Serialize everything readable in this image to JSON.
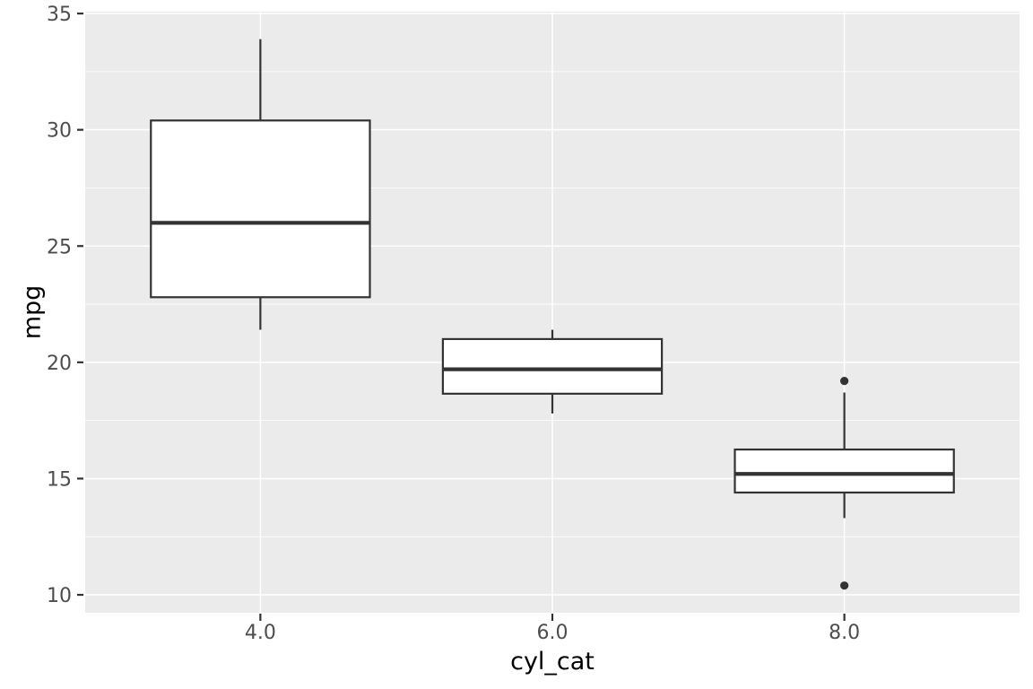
{
  "figure": {
    "background": "#FFFFFF"
  },
  "chart_data": {
    "type": "boxplot",
    "title": "",
    "xlabel": "cyl_cat",
    "ylabel": "mpg",
    "categories": [
      "4.0",
      "6.0",
      "8.0"
    ],
    "boxes": [
      {
        "category": "4.0",
        "lower_whisker": 21.4,
        "q1": 22.8,
        "median": 26.0,
        "q3": 30.4,
        "upper_whisker": 33.9,
        "outliers": []
      },
      {
        "category": "6.0",
        "lower_whisker": 17.8,
        "q1": 18.65,
        "median": 19.7,
        "q3": 21.0,
        "upper_whisker": 21.4,
        "outliers": []
      },
      {
        "category": "8.0",
        "lower_whisker": 13.3,
        "q1": 14.4,
        "median": 15.2,
        "q3": 16.25,
        "upper_whisker": 18.7,
        "outliers": [
          19.2,
          10.4
        ]
      }
    ],
    "ylim": [
      9.23,
      35.08
    ],
    "yticks": [
      10,
      15,
      20,
      25,
      30,
      35
    ],
    "yticks_minor": [
      12.5,
      17.5,
      22.5,
      27.5,
      32.5
    ],
    "grid": "horizontal major+minor, vertical major at category centers",
    "legend": "none",
    "colors": {
      "panel_background": "#EBEBEB",
      "grid_major": "#FFFFFF",
      "grid_minor": "#FFFFFF",
      "box_fill": "#FFFFFF",
      "box_stroke": "#333333",
      "median_stroke": "#333333",
      "whisker_stroke": "#333333",
      "outlier_fill": "#333333",
      "tick_mark": "#333333",
      "tick_label": "#4D4D4D",
      "axis_title": "#000000"
    }
  }
}
